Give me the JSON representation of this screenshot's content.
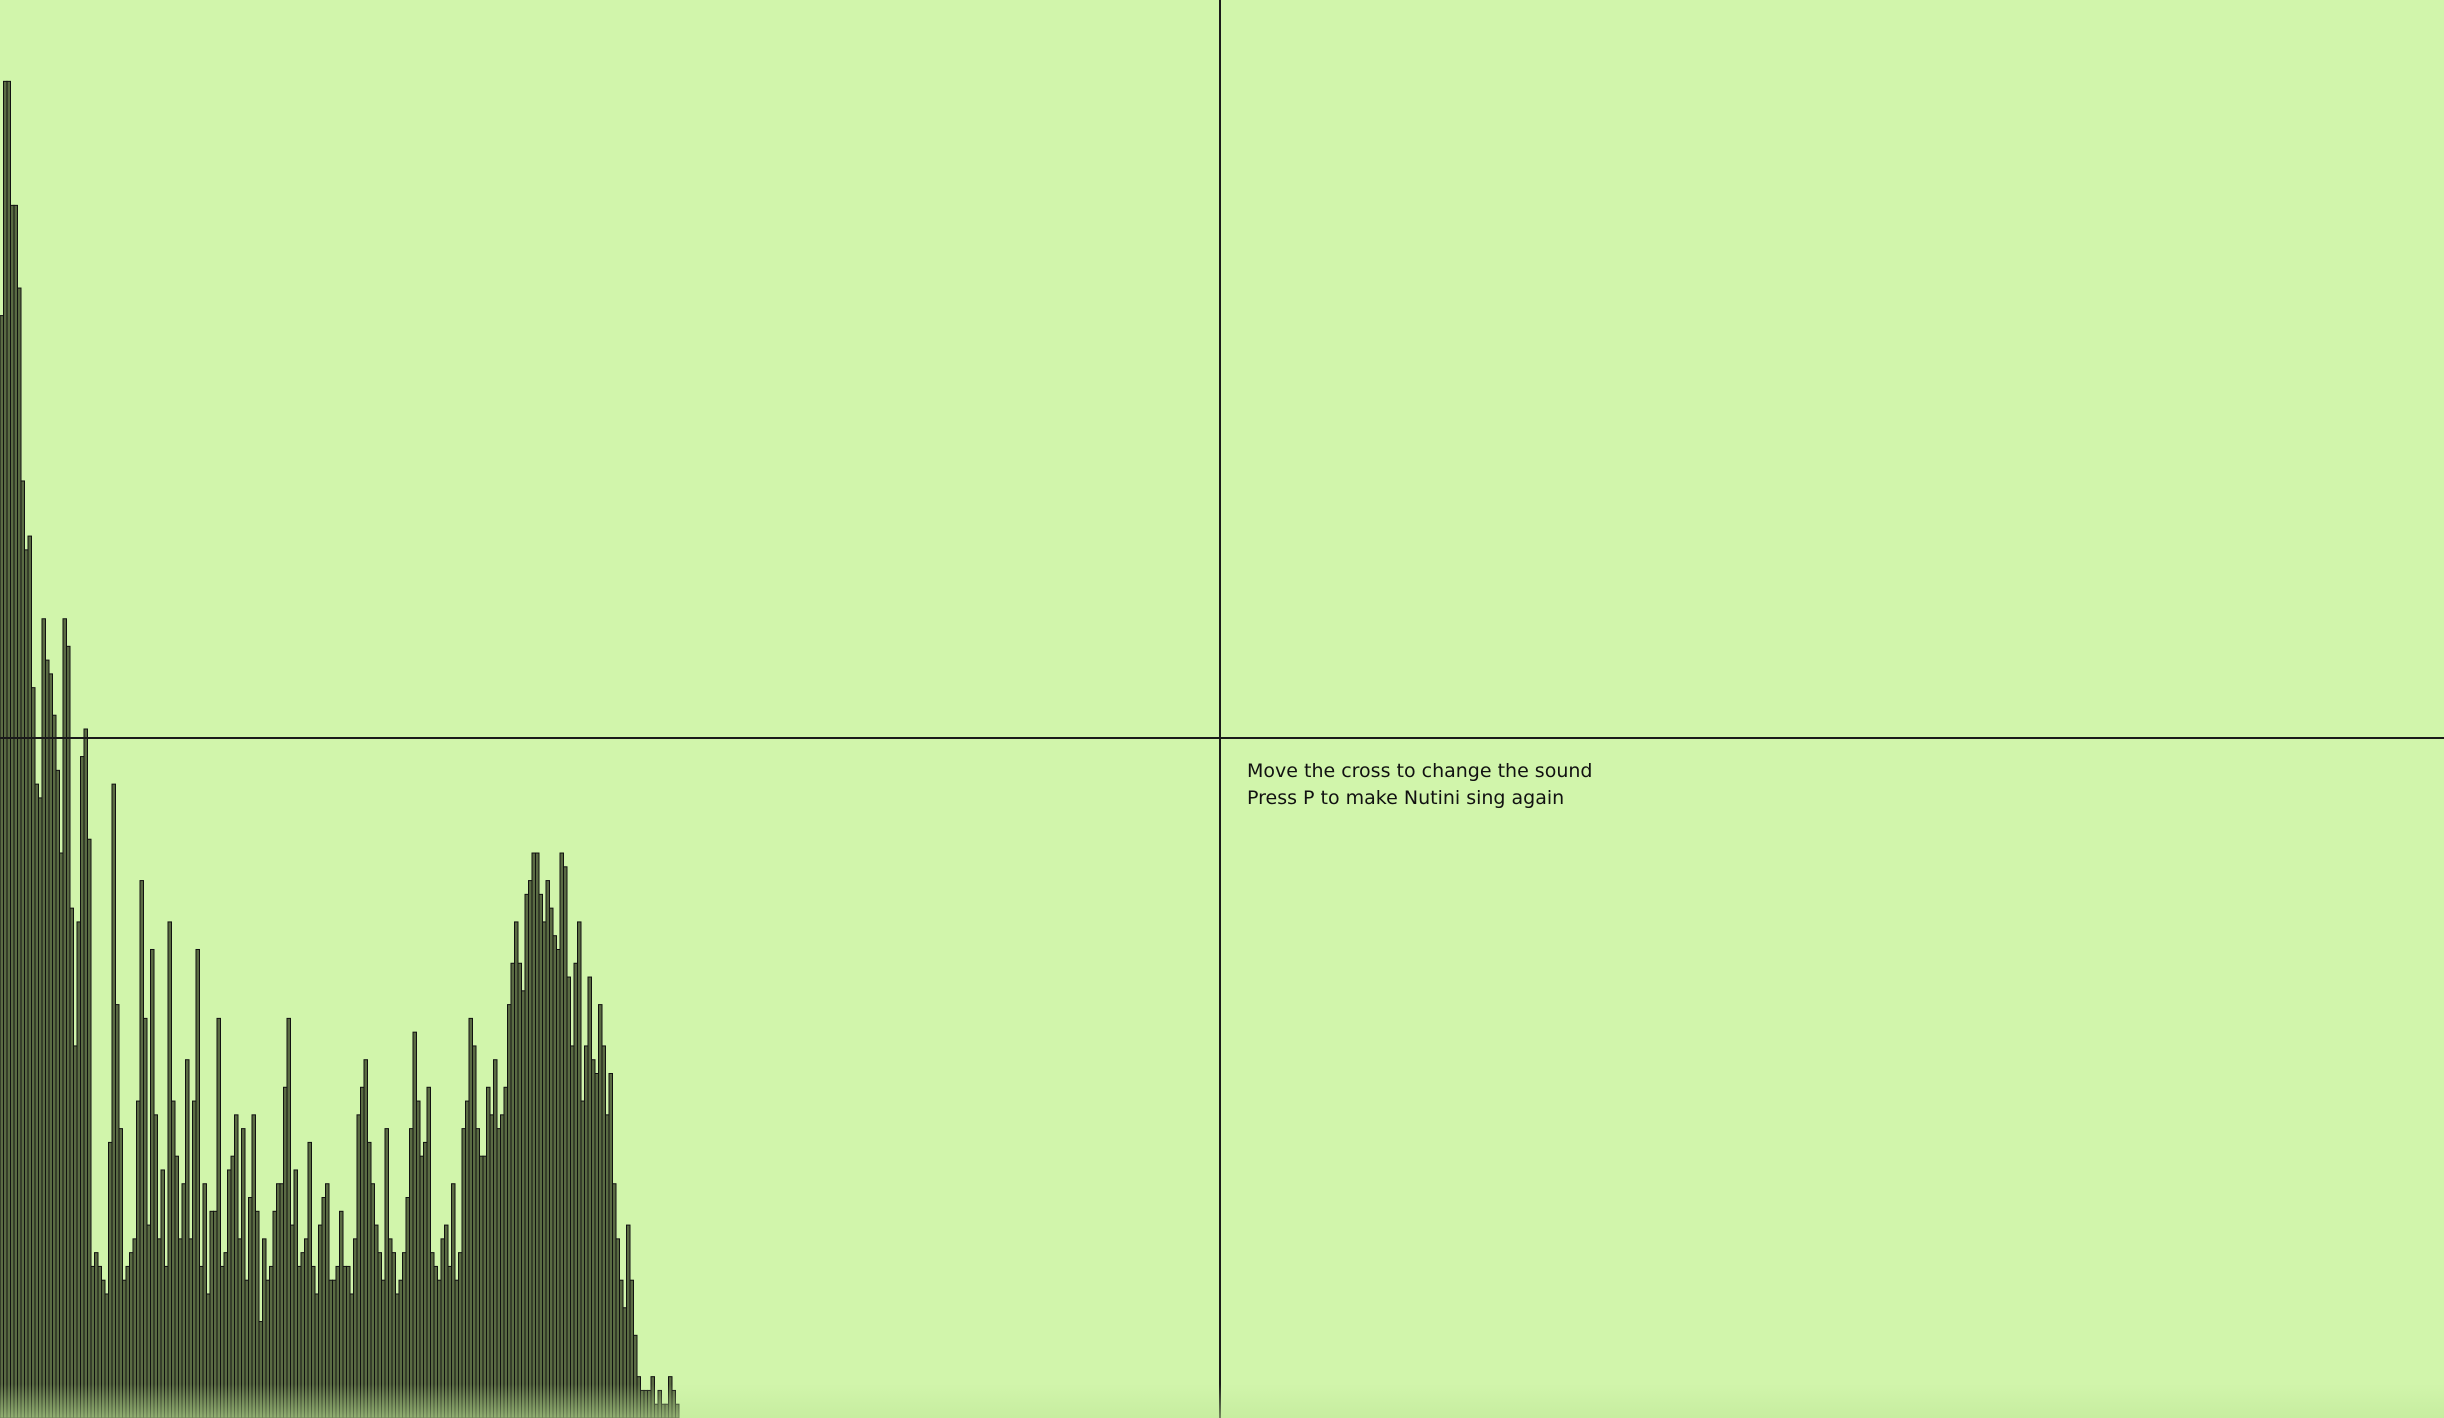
{
  "background_color": "#d1f5ab",
  "bar_fill": "#5a6b43",
  "bar_stroke": "#111111",
  "crosshair_color": "#1a1a1a",
  "instructions": {
    "line1": "Move the cross to change the sound",
    "line2": "Press P to make Nutini sing again"
  },
  "chart_data": {
    "type": "bar",
    "description_scale": "spectrum levels, 0 = floor, 1 = top of canvas",
    "values": [
      0.8,
      0.97,
      0.97,
      0.88,
      0.88,
      0.82,
      0.68,
      0.63,
      0.64,
      0.53,
      0.46,
      0.45,
      0.58,
      0.55,
      0.54,
      0.51,
      0.47,
      0.41,
      0.58,
      0.56,
      0.37,
      0.27,
      0.36,
      0.48,
      0.5,
      0.42,
      0.11,
      0.12,
      0.11,
      0.1,
      0.09,
      0.2,
      0.46,
      0.3,
      0.21,
      0.1,
      0.11,
      0.12,
      0.13,
      0.23,
      0.39,
      0.29,
      0.14,
      0.34,
      0.22,
      0.13,
      0.18,
      0.11,
      0.36,
      0.23,
      0.19,
      0.13,
      0.17,
      0.26,
      0.13,
      0.23,
      0.34,
      0.11,
      0.17,
      0.09,
      0.15,
      0.15,
      0.29,
      0.11,
      0.12,
      0.18,
      0.19,
      0.22,
      0.13,
      0.21,
      0.1,
      0.16,
      0.22,
      0.15,
      0.07,
      0.13,
      0.1,
      0.11,
      0.15,
      0.17,
      0.17,
      0.24,
      0.29,
      0.14,
      0.18,
      0.11,
      0.12,
      0.13,
      0.2,
      0.11,
      0.09,
      0.14,
      0.16,
      0.17,
      0.1,
      0.1,
      0.11,
      0.15,
      0.11,
      0.11,
      0.09,
      0.13,
      0.22,
      0.24,
      0.26,
      0.2,
      0.17,
      0.14,
      0.12,
      0.1,
      0.21,
      0.13,
      0.12,
      0.09,
      0.1,
      0.12,
      0.16,
      0.21,
      0.28,
      0.23,
      0.19,
      0.2,
      0.24,
      0.12,
      0.11,
      0.1,
      0.13,
      0.14,
      0.11,
      0.17,
      0.1,
      0.12,
      0.21,
      0.23,
      0.29,
      0.27,
      0.21,
      0.19,
      0.19,
      0.24,
      0.22,
      0.26,
      0.21,
      0.22,
      0.24,
      0.3,
      0.33,
      0.36,
      0.33,
      0.31,
      0.38,
      0.39,
      0.41,
      0.41,
      0.38,
      0.36,
      0.39,
      0.37,
      0.35,
      0.34,
      0.41,
      0.4,
      0.32,
      0.27,
      0.33,
      0.36,
      0.23,
      0.27,
      0.32,
      0.26,
      0.25,
      0.3,
      0.27,
      0.22,
      0.25,
      0.17,
      0.13,
      0.1,
      0.08,
      0.14,
      0.1,
      0.06,
      0.03,
      0.02,
      0.02,
      0.02,
      0.03,
      0.01,
      0.02,
      0.01,
      0.01,
      0.03,
      0.02,
      0.01
    ]
  }
}
